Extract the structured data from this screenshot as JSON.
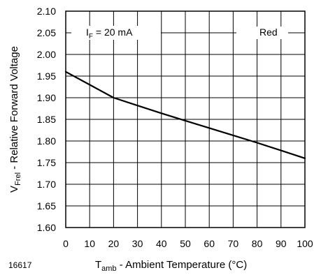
{
  "chart_data": {
    "type": "line",
    "title": "",
    "xlabel": {
      "main": "T",
      "sub": "amb",
      "rest": " - Ambient Temperature (°C)"
    },
    "ylabel": {
      "main": "V",
      "sub": "Frel",
      "rest": " - Relative Forward Voltage"
    },
    "xlim": [
      0,
      100
    ],
    "ylim": [
      1.6,
      2.1
    ],
    "x_ticks": [
      "0",
      "10",
      "20",
      "30",
      "40",
      "50",
      "60",
      "70",
      "80",
      "90",
      "100"
    ],
    "y_ticks": [
      "1.60",
      "1.65",
      "1.70",
      "1.75",
      "1.80",
      "1.85",
      "1.90",
      "1.95",
      "2.00",
      "2.05",
      "2.10"
    ],
    "grid": true,
    "legend": "none",
    "series": [
      {
        "name": "Red",
        "x": [
          0,
          10,
          20,
          30,
          40,
          50,
          60,
          70,
          80,
          90,
          100
        ],
        "y": [
          1.96,
          1.93,
          1.9,
          1.882,
          1.864,
          1.847,
          1.83,
          1.813,
          1.796,
          1.778,
          1.76
        ],
        "color": "#000000"
      }
    ],
    "annotations": {
      "condition": {
        "main": "I",
        "sub": "F",
        "rest": " = 20 mA"
      },
      "series_label": "Red",
      "figure_number": "16617"
    }
  }
}
